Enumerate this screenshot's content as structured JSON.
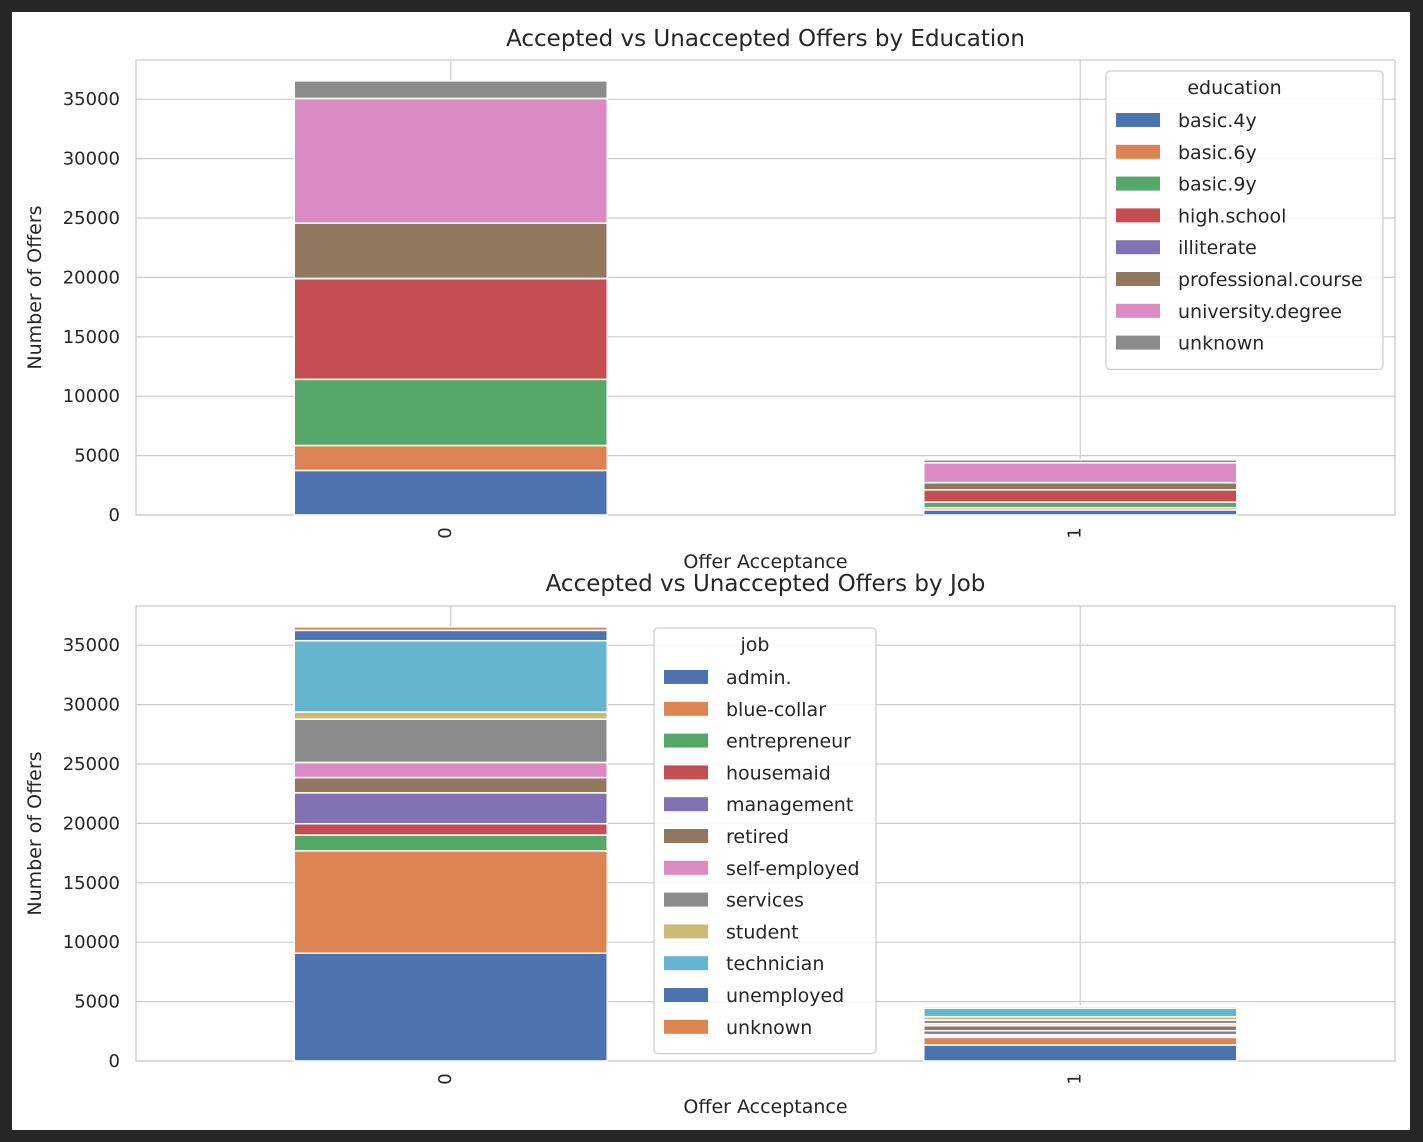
{
  "chart_data": [
    {
      "type": "bar",
      "stacked": true,
      "title": "Accepted vs Unaccepted Offers by Education",
      "xlabel": "Offer Acceptance",
      "ylabel": "Number of Offers",
      "categories": [
        "0",
        "1"
      ],
      "ylim": [
        0,
        38300
      ],
      "yticks": [
        0,
        5000,
        10000,
        15000,
        20000,
        25000,
        30000,
        35000
      ],
      "grid": true,
      "legend": {
        "title": "education",
        "placement": "top-right"
      },
      "series": [
        {
          "name": "basic.4y",
          "color": "#4c72b0",
          "values": [
            3750,
            430
          ]
        },
        {
          "name": "basic.6y",
          "color": "#dd8452",
          "values": [
            2100,
            190
          ]
        },
        {
          "name": "basic.9y",
          "color": "#55a868",
          "values": [
            5570,
            470
          ]
        },
        {
          "name": "high.school",
          "color": "#c44e52",
          "values": [
            8480,
            1030
          ]
        },
        {
          "name": "illiterate",
          "color": "#8172b3",
          "values": [
            15,
            5
          ]
        },
        {
          "name": "professional.course",
          "color": "#937860",
          "values": [
            4650,
            600
          ]
        },
        {
          "name": "university.degree",
          "color": "#da8bc3",
          "values": [
            10500,
            1670
          ]
        },
        {
          "name": "unknown",
          "color": "#8c8c8c",
          "values": [
            1480,
            250
          ]
        }
      ]
    },
    {
      "type": "bar",
      "stacked": true,
      "title": "Accepted vs Unaccepted Offers by Job",
      "xlabel": "Offer Acceptance",
      "ylabel": "Number of Offers",
      "categories": [
        "0",
        "1"
      ],
      "ylim": [
        0,
        38300
      ],
      "yticks": [
        0,
        5000,
        10000,
        15000,
        20000,
        25000,
        30000,
        35000
      ],
      "grid": true,
      "legend": {
        "title": "job",
        "placement": "upper-center"
      },
      "series": [
        {
          "name": "admin.",
          "color": "#4c72b0",
          "values": [
            9070,
            1350
          ]
        },
        {
          "name": "blue-collar",
          "color": "#dd8452",
          "values": [
            8620,
            640
          ]
        },
        {
          "name": "entrepreneur",
          "color": "#55a868",
          "values": [
            1330,
            120
          ]
        },
        {
          "name": "housemaid",
          "color": "#c44e52",
          "values": [
            950,
            110
          ]
        },
        {
          "name": "management",
          "color": "#8172b3",
          "values": [
            2600,
            330
          ]
        },
        {
          "name": "retired",
          "color": "#937860",
          "values": [
            1290,
            430
          ]
        },
        {
          "name": "self-employed",
          "color": "#da8bc3",
          "values": [
            1270,
            150
          ]
        },
        {
          "name": "services",
          "color": "#8c8c8c",
          "values": [
            3650,
            320
          ]
        },
        {
          "name": "student",
          "color": "#ccb974",
          "values": [
            600,
            280
          ]
        },
        {
          "name": "technician",
          "color": "#64b5cd",
          "values": [
            6000,
            730
          ]
        },
        {
          "name": "unemployed",
          "color": "#4c72b0",
          "values": [
            870,
            140
          ]
        },
        {
          "name": "unknown",
          "color": "#dd8452",
          "values": [
            290,
            40
          ]
        }
      ]
    }
  ]
}
